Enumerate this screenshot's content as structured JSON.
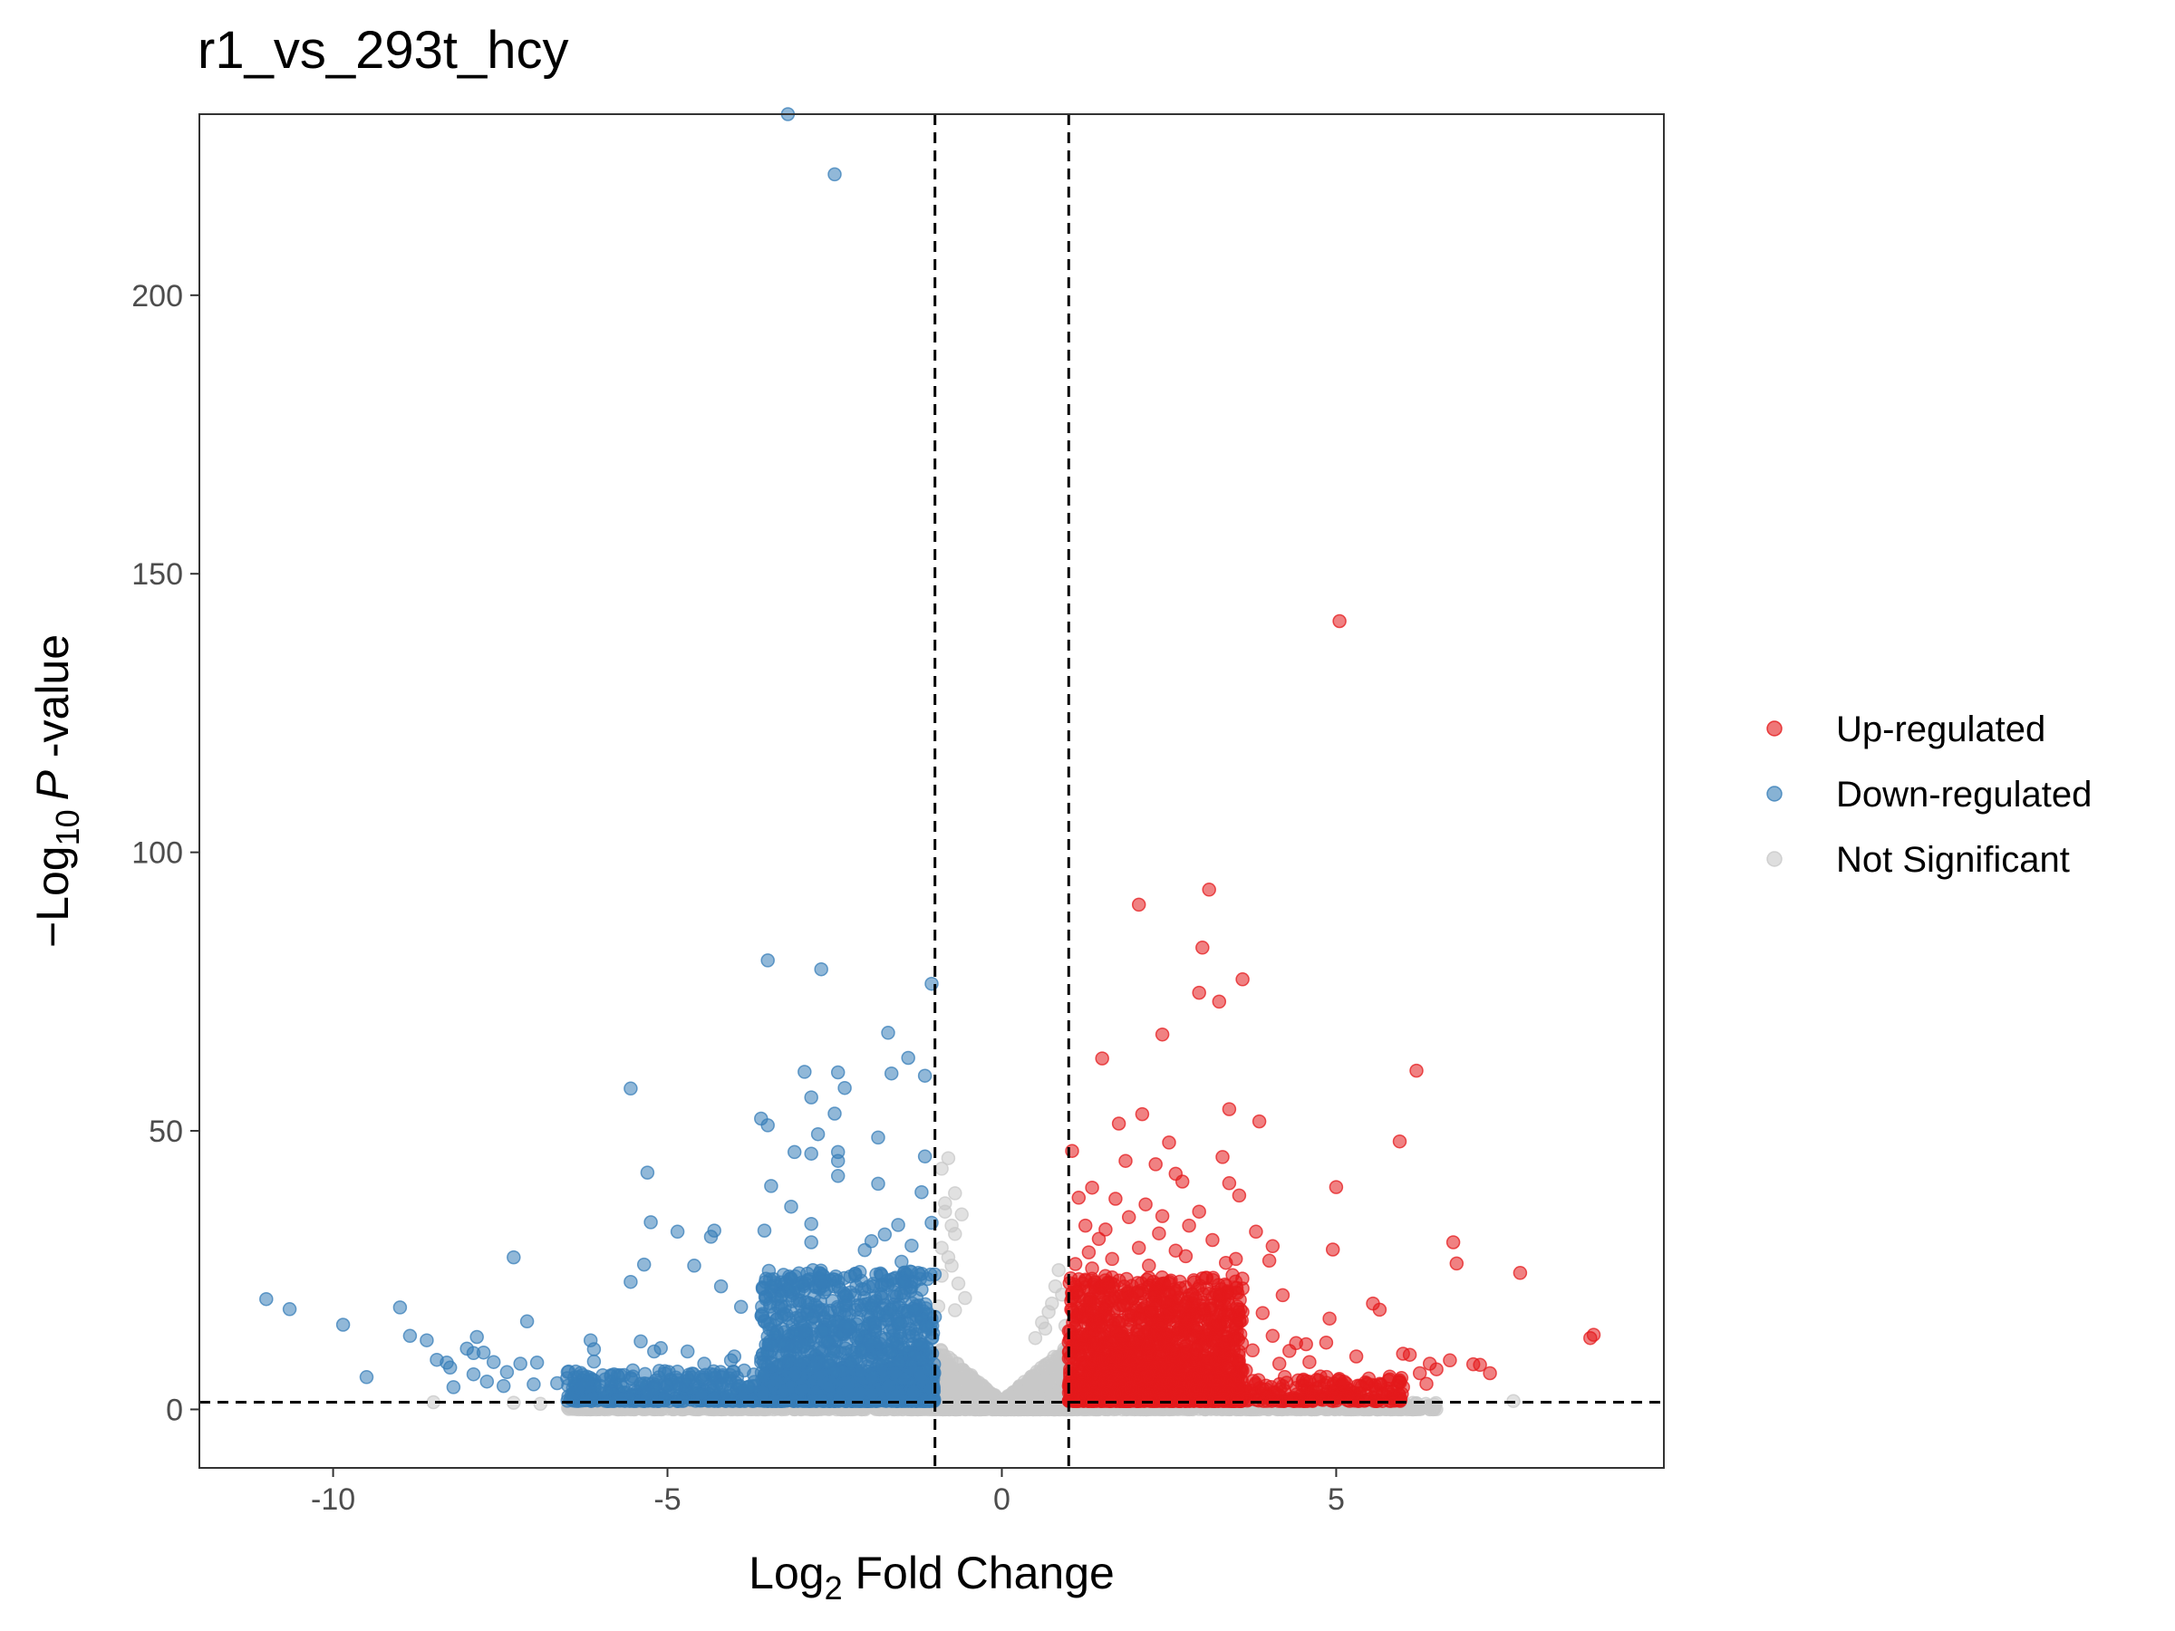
{
  "chart_data": {
    "type": "scatter",
    "title": "r1_vs_293t_hcy",
    "xlabel": {
      "prefix": "Log",
      "sub": "2",
      "suffix": " Fold Change"
    },
    "ylabel": {
      "prefix": "−Log",
      "sub": "10",
      "italic": "P",
      "suffix": " -value"
    },
    "xlim": [
      -12,
      9.9
    ],
    "ylim": [
      -10.5,
      232.5
    ],
    "x_ticks": [
      -10,
      -5,
      0,
      5
    ],
    "y_ticks": [
      0,
      50,
      100,
      150,
      200
    ],
    "grid": false,
    "legend_position": "right",
    "thresholds": {
      "fc_lines": [
        -1,
        1
      ],
      "p_line": 1.3
    },
    "series": [
      {
        "name": "Up-regulated",
        "color": "#e41a1c",
        "points": [
          [
            5.05,
            141.5
          ],
          [
            3.1,
            93.3
          ],
          [
            2.05,
            90.6
          ],
          [
            3.0,
            82.9
          ],
          [
            3.6,
            77.2
          ],
          [
            2.95,
            74.8
          ],
          [
            3.25,
            73.2
          ],
          [
            2.4,
            67.3
          ],
          [
            1.5,
            63.0
          ],
          [
            6.2,
            60.8
          ],
          [
            2.1,
            53.0
          ],
          [
            3.4,
            53.9
          ],
          [
            3.85,
            51.7
          ],
          [
            1.75,
            51.3
          ],
          [
            2.5,
            47.9
          ],
          [
            1.05,
            46.4
          ],
          [
            5.95,
            48.1
          ],
          [
            1.85,
            44.6
          ],
          [
            2.3,
            44.0
          ],
          [
            3.3,
            45.3
          ],
          [
            3.4,
            40.6
          ],
          [
            5.0,
            39.9
          ],
          [
            1.35,
            39.8
          ],
          [
            2.6,
            42.3
          ],
          [
            2.7,
            40.9
          ],
          [
            1.7,
            37.8
          ],
          [
            2.15,
            36.8
          ],
          [
            3.55,
            38.4
          ],
          [
            1.15,
            38.0
          ],
          [
            2.4,
            34.7
          ],
          [
            1.55,
            32.3
          ],
          [
            2.8,
            33.0
          ],
          [
            3.15,
            30.4
          ],
          [
            3.8,
            31.9
          ],
          [
            4.05,
            29.3
          ],
          [
            4.95,
            28.7
          ],
          [
            1.3,
            28.2
          ],
          [
            6.75,
            30.0
          ],
          [
            2.05,
            29.0
          ],
          [
            2.75,
            27.5
          ],
          [
            3.5,
            27.0
          ],
          [
            4.0,
            26.7
          ],
          [
            6.8,
            26.2
          ],
          [
            1.1,
            26.1
          ],
          [
            7.75,
            24.5
          ],
          [
            3.35,
            26.3
          ],
          [
            1.4,
            22.0
          ],
          [
            3.6,
            21.7
          ],
          [
            4.2,
            20.5
          ],
          [
            5.55,
            19.0
          ],
          [
            1.25,
            19.5
          ],
          [
            3.9,
            17.3
          ],
          [
            4.9,
            16.3
          ],
          [
            2.25,
            17.6
          ],
          [
            5.65,
            17.9
          ],
          [
            2.75,
            16.0
          ],
          [
            8.85,
            13.4
          ],
          [
            8.8,
            12.8
          ],
          [
            4.4,
            11.9
          ],
          [
            3.75,
            10.6
          ],
          [
            6.1,
            9.8
          ],
          [
            6.0,
            10.0
          ],
          [
            4.55,
            11.7
          ],
          [
            4.85,
            12.0
          ],
          [
            1.2,
            13.5
          ],
          [
            5.3,
            9.5
          ],
          [
            6.4,
            8.2
          ],
          [
            7.05,
            8.1
          ],
          [
            6.7,
            8.8
          ],
          [
            7.3,
            6.5
          ],
          [
            6.25,
            6.5
          ],
          [
            6.5,
            7.2
          ],
          [
            7.15,
            8.0
          ],
          [
            4.6,
            8.5
          ],
          [
            4.15,
            8.2
          ],
          [
            3.65,
            7.0
          ],
          [
            5.65,
            4.6
          ],
          [
            6.0,
            4.0
          ],
          [
            5.1,
            4.5
          ],
          [
            4.7,
            3.8
          ],
          [
            4.2,
            4.2
          ],
          [
            3.9,
            3.6
          ],
          [
            2.9,
            3.4
          ],
          [
            6.35,
            4.6
          ],
          [
            5.85,
            3.2
          ],
          [
            3.4,
            5.3
          ],
          [
            2.55,
            4.8
          ],
          [
            3.1,
            9.0
          ],
          [
            2.35,
            11.5
          ],
          [
            2.7,
            14.2
          ],
          [
            3.0,
            11.4
          ],
          [
            1.95,
            19.8
          ],
          [
            2.5,
            22.6
          ],
          [
            1.35,
            25.3
          ],
          [
            1.6,
            16.7
          ],
          [
            1.8,
            12.6
          ],
          [
            2.15,
            13.9
          ],
          [
            3.25,
            14.9
          ],
          [
            2.85,
            20.6
          ],
          [
            3.45,
            24.1
          ],
          [
            2.2,
            25.8
          ],
          [
            1.45,
            30.6
          ],
          [
            2.6,
            28.5
          ],
          [
            1.9,
            34.5
          ],
          [
            2.95,
            35.5
          ],
          [
            1.25,
            33.0
          ],
          [
            3.55,
            16.0
          ],
          [
            4.3,
            10.5
          ],
          [
            4.05,
            13.2
          ],
          [
            1.65,
            27.0
          ],
          [
            2.35,
            31.6
          ],
          [
            3.05,
            23.6
          ]
        ],
        "clusters": [
          {
            "x": [
              1.0,
              3.6
            ],
            "y": [
              1.5,
              24
            ],
            "n": 1600
          },
          {
            "x": [
              1.0,
              6.0
            ],
            "y": [
              1.5,
              6
            ],
            "n": 400
          }
        ]
      },
      {
        "name": "Down-regulated",
        "color": "#377eb8",
        "points": [
          [
            -3.2,
            232.5
          ],
          [
            -2.5,
            221.7
          ],
          [
            -3.5,
            80.6
          ],
          [
            -2.7,
            79.0
          ],
          [
            -1.05,
            76.4
          ],
          [
            -1.7,
            67.6
          ],
          [
            -1.4,
            63.1
          ],
          [
            -2.95,
            60.6
          ],
          [
            -2.45,
            60.5
          ],
          [
            -1.65,
            60.3
          ],
          [
            -1.15,
            59.9
          ],
          [
            -5.55,
            57.6
          ],
          [
            -2.35,
            57.7
          ],
          [
            -2.85,
            56.0
          ],
          [
            -2.5,
            53.1
          ],
          [
            -3.6,
            52.2
          ],
          [
            -3.5,
            51.0
          ],
          [
            -2.75,
            49.4
          ],
          [
            -1.85,
            48.8
          ],
          [
            -3.1,
            46.2
          ],
          [
            -2.45,
            46.2
          ],
          [
            -2.85,
            45.9
          ],
          [
            -2.45,
            44.6
          ],
          [
            -1.15,
            45.4
          ],
          [
            -5.3,
            42.5
          ],
          [
            -2.45,
            41.9
          ],
          [
            -3.45,
            40.1
          ],
          [
            -1.85,
            40.5
          ],
          [
            -1.2,
            39.0
          ],
          [
            -3.15,
            36.4
          ],
          [
            -5.25,
            33.6
          ],
          [
            -4.85,
            31.9
          ],
          [
            -4.3,
            32.1
          ],
          [
            -4.35,
            31.0
          ],
          [
            -3.55,
            32.1
          ],
          [
            -2.85,
            33.3
          ],
          [
            -1.05,
            33.5
          ],
          [
            -2.85,
            30.0
          ],
          [
            -5.35,
            26.0
          ],
          [
            -4.6,
            25.8
          ],
          [
            -7.3,
            27.3
          ],
          [
            -5.55,
            22.9
          ],
          [
            -4.2,
            22.1
          ],
          [
            -3.45,
            22.0
          ],
          [
            -2.45,
            23.0
          ],
          [
            -11.0,
            19.8
          ],
          [
            -10.65,
            18.0
          ],
          [
            -9.85,
            15.2
          ],
          [
            -9.0,
            18.3
          ],
          [
            -8.85,
            13.2
          ],
          [
            -8.6,
            12.4
          ],
          [
            -7.85,
            13.0
          ],
          [
            -7.1,
            15.8
          ],
          [
            -6.15,
            12.4
          ],
          [
            -6.1,
            10.8
          ],
          [
            -5.4,
            12.2
          ],
          [
            -5.1,
            11.0
          ],
          [
            -5.2,
            10.4
          ],
          [
            -4.7,
            10.4
          ],
          [
            -3.9,
            18.4
          ],
          [
            -3.5,
            15.3
          ],
          [
            -2.95,
            14.0
          ],
          [
            -8.45,
            8.9
          ],
          [
            -8.3,
            8.4
          ],
          [
            -8.25,
            7.5
          ],
          [
            -8.0,
            10.9
          ],
          [
            -7.9,
            10.1
          ],
          [
            -7.75,
            10.2
          ],
          [
            -7.6,
            8.5
          ],
          [
            -7.4,
            6.7
          ],
          [
            -7.2,
            8.2
          ],
          [
            -6.95,
            8.4
          ],
          [
            -6.5,
            5.6
          ],
          [
            -6.1,
            8.6
          ],
          [
            -5.8,
            6.3
          ],
          [
            -4.45,
            8.2
          ],
          [
            -4.0,
            9.5
          ],
          [
            -4.05,
            8.8
          ],
          [
            -3.6,
            8.5
          ],
          [
            -9.5,
            5.8
          ],
          [
            -8.2,
            4.0
          ],
          [
            -7.9,
            6.3
          ],
          [
            -7.7,
            5.0
          ],
          [
            -7.45,
            4.2
          ],
          [
            -7.0,
            4.5
          ],
          [
            -6.65,
            4.7
          ],
          [
            -6.3,
            4.0
          ],
          [
            -6.0,
            4.2
          ],
          [
            -5.7,
            4.4
          ],
          [
            -5.4,
            4.6
          ],
          [
            -5.0,
            4.3
          ],
          [
            -4.6,
            3.9
          ],
          [
            -4.2,
            4.5
          ],
          [
            -3.8,
            4.0
          ],
          [
            -3.4,
            4.3
          ],
          [
            -3.0,
            3.6
          ],
          [
            -2.6,
            4.1
          ],
          [
            -2.3,
            3.3
          ],
          [
            -2.05,
            28.6
          ],
          [
            -1.95,
            30.2
          ],
          [
            -1.75,
            31.4
          ],
          [
            -1.55,
            33.1
          ],
          [
            -1.5,
            26.5
          ],
          [
            -1.35,
            29.4
          ],
          [
            -1.25,
            24.5
          ],
          [
            -2.2,
            20.5
          ],
          [
            -2.1,
            17.8
          ],
          [
            -1.8,
            24.0
          ],
          [
            -1.6,
            21.0
          ],
          [
            -1.2,
            21.5
          ],
          [
            -1.4,
            17.5
          ],
          [
            -2.3,
            14.5
          ],
          [
            -2.6,
            12.3
          ],
          [
            -1.9,
            15.4
          ],
          [
            -1.1,
            14.6
          ],
          [
            -3.2,
            11.5
          ],
          [
            -2.0,
            9.0
          ],
          [
            -1.3,
            9.8
          ],
          [
            -2.8,
            7.6
          ],
          [
            -3.1,
            6.4
          ],
          [
            -1.6,
            6.4
          ],
          [
            -4.3,
            6.2
          ],
          [
            -5.2,
            4.0
          ],
          [
            -6.2,
            5.0
          ]
        ],
        "clusters": [
          {
            "x": [
              -3.6,
              -1.0
            ],
            "y": [
              1.5,
              25
            ],
            "n": 1300
          },
          {
            "x": [
              -6.5,
              -1.0
            ],
            "y": [
              1.5,
              7
            ],
            "n": 600
          }
        ]
      },
      {
        "name": "Not Significant",
        "color": "#c8c8c8",
        "points": [
          [
            -0.8,
            45.1
          ],
          [
            -0.9,
            43.2
          ],
          [
            -0.7,
            38.8
          ],
          [
            -0.85,
            37.0
          ],
          [
            -0.75,
            33.0
          ],
          [
            -0.7,
            31.5
          ],
          [
            -0.9,
            29.0
          ],
          [
            -0.8,
            27.3
          ],
          [
            -0.75,
            25.8
          ],
          [
            -0.9,
            24.0
          ],
          [
            -0.65,
            22.6
          ],
          [
            -0.55,
            20.0
          ],
          [
            -0.7,
            17.8
          ],
          [
            -0.95,
            18.5
          ],
          [
            -0.6,
            35.0
          ],
          [
            -0.85,
            35.5
          ],
          [
            0.85,
            25.0
          ],
          [
            0.8,
            22.1
          ],
          [
            0.9,
            20.6
          ],
          [
            0.75,
            19.0
          ],
          [
            0.7,
            17.5
          ],
          [
            0.6,
            15.6
          ],
          [
            0.95,
            15.0
          ],
          [
            0.5,
            12.8
          ],
          [
            0.65,
            14.5
          ],
          [
            -8.5,
            1.3
          ],
          [
            -7.3,
            1.2
          ],
          [
            -6.9,
            1.0
          ],
          [
            7.65,
            1.5
          ],
          [
            6.2,
            1.1
          ],
          [
            -5.5,
            0.9
          ],
          [
            -3.0,
            0.8
          ],
          [
            3.0,
            1.1
          ],
          [
            5.0,
            0.9
          ]
        ],
        "clusters": [
          {
            "x": [
              -1.0,
              1.0
            ],
            "y": [
              0,
              10
            ],
            "n": 1200,
            "shape": "v"
          },
          {
            "x": [
              -6.5,
              6.5
            ],
            "y": [
              0,
              1.3
            ],
            "n": 1400
          }
        ]
      }
    ]
  }
}
